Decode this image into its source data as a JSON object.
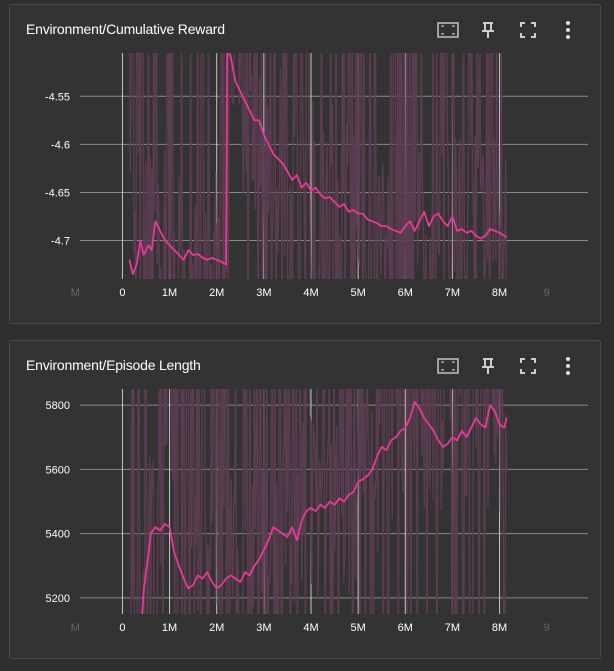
{
  "colors": {
    "background": "#2f2f2f",
    "card": "#333333",
    "raw_line": "#5d3d52",
    "smoothed_line": "#e8389a",
    "grid": "#8a8a8a",
    "axis_text": "#ffffff"
  },
  "toolbar_icons": [
    "fit-domain-icon",
    "pin-icon",
    "fullscreen-icon",
    "more-vert-icon"
  ],
  "cards": [
    {
      "title": "Environment/Cumulative Reward",
      "chart_data": {
        "type": "line",
        "title": "Environment/Cumulative Reward",
        "xlabel": "",
        "ylabel": "",
        "xlim": [
          -0.9,
          8.9
        ],
        "ylim": [
          -4.74,
          -4.505
        ],
        "x_ticks": [
          -1,
          0,
          1,
          2,
          3,
          4,
          5,
          6,
          7,
          8,
          9
        ],
        "x_tick_labels": [
          "M",
          "0",
          "1M",
          "2M",
          "3M",
          "4M",
          "5M",
          "6M",
          "7M",
          "8M",
          "9"
        ],
        "y_ticks": [
          -4.55,
          -4.6,
          -4.65,
          -4.7
        ],
        "y_tick_labels": [
          "-4.55",
          "-4.6",
          "-4.65",
          "-4.7"
        ],
        "grid": true,
        "series": [
          {
            "smoothed": true,
            "x": [
              0.15,
              0.22,
              0.3,
              0.38,
              0.45,
              0.55,
              0.62,
              0.7,
              0.75,
              0.8,
              0.9,
              1.0,
              1.1,
              1.2,
              1.3,
              1.4,
              1.5,
              1.6,
              1.7,
              1.8,
              1.9,
              2.0,
              2.1,
              2.2,
              2.22,
              2.3,
              2.4,
              2.5,
              2.6,
              2.7,
              2.8,
              2.9,
              3.0,
              3.1,
              3.2,
              3.3,
              3.4,
              3.5,
              3.6,
              3.7,
              3.8,
              3.9,
              4.0,
              4.1,
              4.2,
              4.3,
              4.4,
              4.5,
              4.6,
              4.7,
              4.8,
              4.9,
              5.0,
              5.1,
              5.2,
              5.3,
              5.4,
              5.5,
              5.6,
              5.7,
              5.8,
              5.9,
              6.0,
              6.1,
              6.2,
              6.3,
              6.4,
              6.5,
              6.6,
              6.7,
              6.8,
              6.9,
              7.0,
              7.1,
              7.2,
              7.3,
              7.4,
              7.5,
              7.6,
              7.7,
              7.8,
              7.9,
              8.0,
              8.1,
              8.15
            ],
            "values": [
              -4.72,
              -4.735,
              -4.725,
              -4.7,
              -4.715,
              -4.705,
              -4.71,
              -4.68,
              -4.685,
              -4.69,
              -4.7,
              -4.705,
              -4.71,
              -4.715,
              -4.72,
              -4.71,
              -4.715,
              -4.714,
              -4.718,
              -4.72,
              -4.718,
              -4.72,
              -4.722,
              -4.725,
              -4.5,
              -4.51,
              -4.535,
              -4.545,
              -4.555,
              -4.565,
              -4.575,
              -4.575,
              -4.59,
              -4.6,
              -4.61,
              -4.615,
              -4.62,
              -4.628,
              -4.637,
              -4.632,
              -4.645,
              -4.64,
              -4.648,
              -4.645,
              -4.652,
              -4.656,
              -4.655,
              -4.66,
              -4.665,
              -4.662,
              -4.67,
              -4.668,
              -4.672,
              -4.672,
              -4.678,
              -4.68,
              -4.682,
              -4.685,
              -4.685,
              -4.688,
              -4.69,
              -4.692,
              -4.685,
              -4.68,
              -4.69,
              -4.68,
              -4.67,
              -4.685,
              -4.675,
              -4.672,
              -4.68,
              -4.685,
              -4.675,
              -4.69,
              -4.688,
              -4.692,
              -4.69,
              -4.695,
              -4.698,
              -4.695,
              -4.688,
              -4.69,
              -4.692,
              -4.695,
              -4.697
            ]
          }
        ]
      }
    },
    {
      "title": "Environment/Episode Length",
      "chart_data": {
        "type": "line",
        "title": "Environment/Episode Length",
        "xlabel": "",
        "ylabel": "",
        "xlim": [
          -0.9,
          8.9
        ],
        "ylim": [
          5150,
          5850
        ],
        "x_ticks": [
          -1,
          0,
          1,
          2,
          3,
          4,
          5,
          6,
          7,
          8,
          9
        ],
        "x_tick_labels": [
          "M",
          "0",
          "1M",
          "2M",
          "3M",
          "4M",
          "5M",
          "6M",
          "7M",
          "8M",
          "9"
        ],
        "y_ticks": [
          5200,
          5400,
          5600,
          5800
        ],
        "y_tick_labels": [
          "5200",
          "5400",
          "5600",
          "5800"
        ],
        "grid": true,
        "series": [
          {
            "smoothed": true,
            "x": [
              0.42,
              0.45,
              0.5,
              0.55,
              0.6,
              0.7,
              0.8,
              0.9,
              1.0,
              1.1,
              1.2,
              1.3,
              1.4,
              1.5,
              1.6,
              1.7,
              1.8,
              1.9,
              2.0,
              2.1,
              2.2,
              2.3,
              2.4,
              2.5,
              2.6,
              2.7,
              2.8,
              2.9,
              3.0,
              3.1,
              3.2,
              3.3,
              3.4,
              3.5,
              3.6,
              3.7,
              3.8,
              3.9,
              4.0,
              4.1,
              4.2,
              4.3,
              4.4,
              4.5,
              4.6,
              4.7,
              4.8,
              4.9,
              5.0,
              5.1,
              5.2,
              5.3,
              5.4,
              5.5,
              5.6,
              5.7,
              5.8,
              5.9,
              6.0,
              6.1,
              6.2,
              6.3,
              6.4,
              6.5,
              6.6,
              6.7,
              6.8,
              6.9,
              7.0,
              7.1,
              7.2,
              7.3,
              7.4,
              7.5,
              7.6,
              7.7,
              7.8,
              7.9,
              8.0,
              8.1,
              8.15
            ],
            "values": [
              5150,
              5220,
              5280,
              5330,
              5400,
              5420,
              5410,
              5430,
              5420,
              5340,
              5300,
              5260,
              5230,
              5240,
              5270,
              5260,
              5280,
              5250,
              5230,
              5240,
              5260,
              5270,
              5260,
              5250,
              5280,
              5270,
              5300,
              5320,
              5350,
              5380,
              5420,
              5410,
              5400,
              5390,
              5420,
              5380,
              5440,
              5470,
              5480,
              5470,
              5490,
              5480,
              5500,
              5490,
              5510,
              5500,
              5520,
              5530,
              5560,
              5570,
              5580,
              5600,
              5640,
              5670,
              5660,
              5690,
              5700,
              5720,
              5730,
              5760,
              5810,
              5790,
              5760,
              5740,
              5720,
              5690,
              5670,
              5680,
              5700,
              5690,
              5720,
              5700,
              5730,
              5760,
              5740,
              5730,
              5800,
              5780,
              5740,
              5730,
              5760
            ]
          }
        ]
      }
    }
  ]
}
